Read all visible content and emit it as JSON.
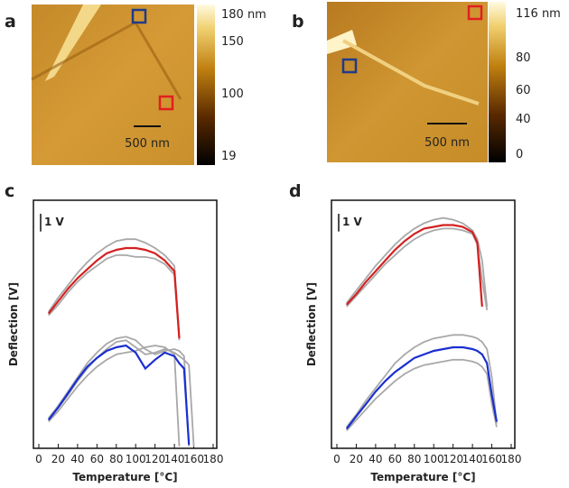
{
  "panels": [
    {
      "label": "a",
      "scale_bar": "500 nm",
      "colorbar_ticks": [
        "180 nm",
        "150",
        "100",
        "19"
      ]
    },
    {
      "label": "b",
      "scale_bar": "500 nm",
      "colorbar_ticks": [
        "116 nm",
        "80",
        "60",
        "40",
        "0"
      ]
    }
  ],
  "chart_data": [
    {
      "type": "line",
      "label": "c",
      "annotation": "1 V",
      "xlabel": "Temperature [°C]",
      "ylabel": "Deflection [V]",
      "x": [
        10,
        20,
        30,
        40,
        50,
        60,
        70,
        80,
        90,
        100,
        110,
        120,
        130,
        140,
        145,
        150,
        155,
        160
      ],
      "xlim": [
        0,
        180
      ],
      "xticks": [
        0,
        20,
        40,
        60,
        80,
        100,
        120,
        140,
        160,
        180
      ],
      "ylim": [
        0,
        14
      ],
      "series": [
        {
          "color": "#a8a8a8",
          "values": [
            7.7,
            8.5,
            9.2,
            9.9,
            10.5,
            11.0,
            11.4,
            11.7,
            11.8,
            11.8,
            11.6,
            11.3,
            10.9,
            10.3,
            6.3,
            null,
            null,
            null
          ]
        },
        {
          "color": "#a8a8a8",
          "values": [
            7.5,
            8.1,
            8.8,
            9.4,
            9.9,
            10.3,
            10.7,
            10.9,
            10.9,
            10.8,
            10.8,
            10.7,
            10.4,
            9.8,
            6.1,
            null,
            null,
            null
          ]
        },
        {
          "color": "#d42020",
          "values": [
            7.6,
            8.3,
            9.0,
            9.6,
            10.1,
            10.6,
            11.0,
            11.2,
            11.3,
            11.3,
            11.2,
            11.0,
            10.6,
            10.0,
            6.2,
            null,
            null,
            null
          ]
        },
        {
          "color": "#a8a8a8",
          "values": [
            1.7,
            2.4,
            3.2,
            4.0,
            4.8,
            5.4,
            5.9,
            6.2,
            6.3,
            6.1,
            5.6,
            5.3,
            5.5,
            5.6,
            5.5,
            5.2,
            0.1,
            null
          ]
        },
        {
          "color": "#a8a8a8",
          "values": [
            1.5,
            2.1,
            2.8,
            3.5,
            4.1,
            4.6,
            5.0,
            5.3,
            5.4,
            5.5,
            5.7,
            5.8,
            5.7,
            5.3,
            0.1,
            null,
            null,
            null
          ]
        },
        {
          "color": "#a8a8a8",
          "values": [
            1.6,
            2.3,
            3.0,
            3.8,
            4.5,
            5.1,
            5.6,
            6.0,
            6.1,
            5.7,
            5.3,
            5.4,
            5.6,
            5.4,
            5.2,
            5.0,
            4.7,
            0.1
          ]
        },
        {
          "color": "#1a2fd0",
          "values": [
            1.6,
            2.3,
            3.1,
            3.9,
            4.6,
            5.1,
            5.5,
            5.7,
            5.8,
            5.4,
            4.5,
            5.0,
            5.4,
            5.2,
            4.8,
            4.5,
            0.2,
            null
          ]
        }
      ]
    },
    {
      "type": "line",
      "label": "d",
      "annotation": "1 V",
      "xlabel": "Temperature [°C]",
      "ylabel": "Deflection [V]",
      "x": [
        10,
        20,
        30,
        40,
        50,
        60,
        70,
        80,
        90,
        100,
        110,
        120,
        130,
        140,
        145,
        150,
        155,
        160,
        165
      ],
      "xlim": [
        0,
        180
      ],
      "xticks": [
        0,
        20,
        40,
        60,
        80,
        100,
        120,
        140,
        160,
        180
      ],
      "ylim": [
        0,
        14
      ],
      "series": [
        {
          "color": "#a8a8a8",
          "values": [
            8.2,
            8.9,
            9.6,
            10.3,
            10.9,
            11.5,
            12.0,
            12.4,
            12.7,
            12.9,
            13.0,
            12.9,
            12.7,
            12.3,
            11.8,
            10.6,
            8.0,
            null,
            null
          ]
        },
        {
          "color": "#a8a8a8",
          "values": [
            8.0,
            8.6,
            9.2,
            9.8,
            10.4,
            10.9,
            11.4,
            11.8,
            12.1,
            12.3,
            12.4,
            12.4,
            12.3,
            12.1,
            11.5,
            9.5,
            7.8,
            null,
            null
          ]
        },
        {
          "color": "#d42020",
          "values": [
            8.1,
            8.7,
            9.4,
            10.0,
            10.6,
            11.2,
            11.7,
            12.1,
            12.4,
            12.5,
            12.6,
            12.6,
            12.5,
            12.2,
            11.6,
            8.0,
            null,
            null,
            null
          ]
        },
        {
          "color": "#a8a8a8",
          "values": [
            1.2,
            1.9,
            2.7,
            3.4,
            4.1,
            4.8,
            5.3,
            5.7,
            6.0,
            6.2,
            6.3,
            6.4,
            6.4,
            6.3,
            6.2,
            6.0,
            5.6,
            4.0,
            1.4
          ]
        },
        {
          "color": "#a8a8a8",
          "values": [
            1.0,
            1.6,
            2.2,
            2.8,
            3.3,
            3.8,
            4.2,
            4.5,
            4.7,
            4.8,
            4.9,
            5.0,
            5.0,
            4.9,
            4.8,
            4.6,
            4.2,
            2.5,
            1.2
          ]
        },
        {
          "color": "#1a2fd0",
          "values": [
            1.1,
            1.8,
            2.5,
            3.2,
            3.8,
            4.3,
            4.7,
            5.1,
            5.3,
            5.5,
            5.6,
            5.7,
            5.7,
            5.6,
            5.5,
            5.3,
            4.8,
            3.0,
            1.5
          ]
        }
      ]
    }
  ]
}
